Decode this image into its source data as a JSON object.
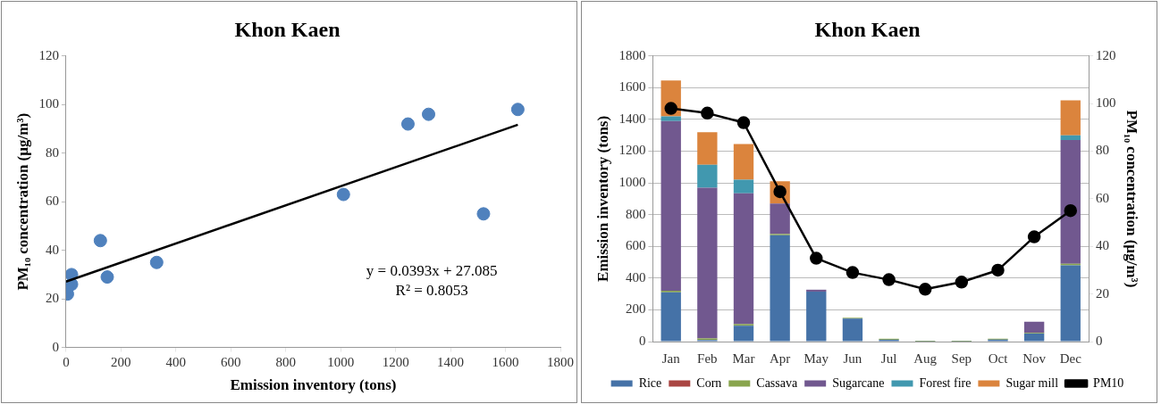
{
  "chart_data": [
    {
      "type": "scatter",
      "title": "Khon Kaen",
      "xlabel": "Emission inventory (tons)",
      "ylabel": "PM₁₀ concentration (µg/m³)",
      "xlim": [
        0,
        1800
      ],
      "xticks": [
        0,
        200,
        400,
        600,
        800,
        1000,
        1200,
        1400,
        1600,
        1800
      ],
      "ylim": [
        0,
        120
      ],
      "yticks": [
        0,
        20,
        40,
        60,
        80,
        100,
        120
      ],
      "grid": false,
      "legend": false,
      "marker": "circle",
      "series": [
        {
          "color": "#4f81bd",
          "x": [
            1645,
            1320,
            1245,
            1010,
            330,
            150,
            20,
            5,
            5,
            20,
            125,
            1520
          ],
          "values": [
            98,
            96,
            92,
            63,
            35,
            29,
            26,
            22,
            25,
            30,
            44,
            55
          ]
        },
        {
          "type": "line",
          "color": "#000000",
          "marker": "none",
          "x": [
            0,
            1645
          ],
          "values": [
            27.1,
            91.7
          ]
        }
      ],
      "annotations": [
        "y = 0.0393x + 27.085",
        "R² = 0.8053"
      ]
    },
    {
      "type": "bar",
      "title": "Khon Kaen",
      "ylabel": "Emission inventory (tons)",
      "y2label": "PM₁₀ concentration (µg/m³)",
      "stacked": true,
      "grid": "y",
      "legend": "bottom",
      "categories": [
        "Jan",
        "Feb",
        "Mar",
        "Apr",
        "May",
        "Jun",
        "Jul",
        "Aug",
        "Sep",
        "Oct",
        "Nov",
        "Dec"
      ],
      "ylim": [
        0,
        1800
      ],
      "yticks": [
        0,
        200,
        400,
        600,
        800,
        1000,
        1200,
        1400,
        1600,
        1800
      ],
      "y2lim": [
        0,
        120
      ],
      "y2ticks": [
        0,
        20,
        40,
        60,
        80,
        100,
        120
      ],
      "series": [
        {
          "name": "Rice",
          "color": "#4572a7",
          "values": [
            310,
            10,
            100,
            670,
            315,
            145,
            12,
            2,
            2,
            12,
            50,
            480
          ]
        },
        {
          "name": "Corn",
          "color": "#aa4643",
          "values": [
            0,
            0,
            0,
            0,
            0,
            0,
            0,
            0,
            0,
            0,
            0,
            0
          ]
        },
        {
          "name": "Cassava",
          "color": "#89a54e",
          "values": [
            10,
            10,
            10,
            8,
            0,
            5,
            6,
            3,
            3,
            6,
            5,
            10
          ]
        },
        {
          "name": "Sugarcane",
          "color": "#71588f",
          "values": [
            1070,
            950,
            825,
            192,
            12,
            0,
            0,
            0,
            0,
            0,
            70,
            780
          ]
        },
        {
          "name": "Forest fire",
          "color": "#4198af",
          "values": [
            30,
            145,
            85,
            0,
            0,
            0,
            0,
            0,
            0,
            0,
            0,
            30
          ]
        },
        {
          "name": "Sugar mill",
          "color": "#db843d",
          "values": [
            225,
            205,
            225,
            140,
            0,
            0,
            0,
            0,
            0,
            0,
            0,
            220
          ]
        },
        {
          "name": "PM10",
          "type": "line",
          "axis": "y2",
          "marker": "circle",
          "color": "#000000",
          "values": [
            98,
            96,
            92,
            63,
            35,
            29,
            26,
            22,
            25,
            30,
            44,
            55
          ]
        }
      ]
    }
  ]
}
